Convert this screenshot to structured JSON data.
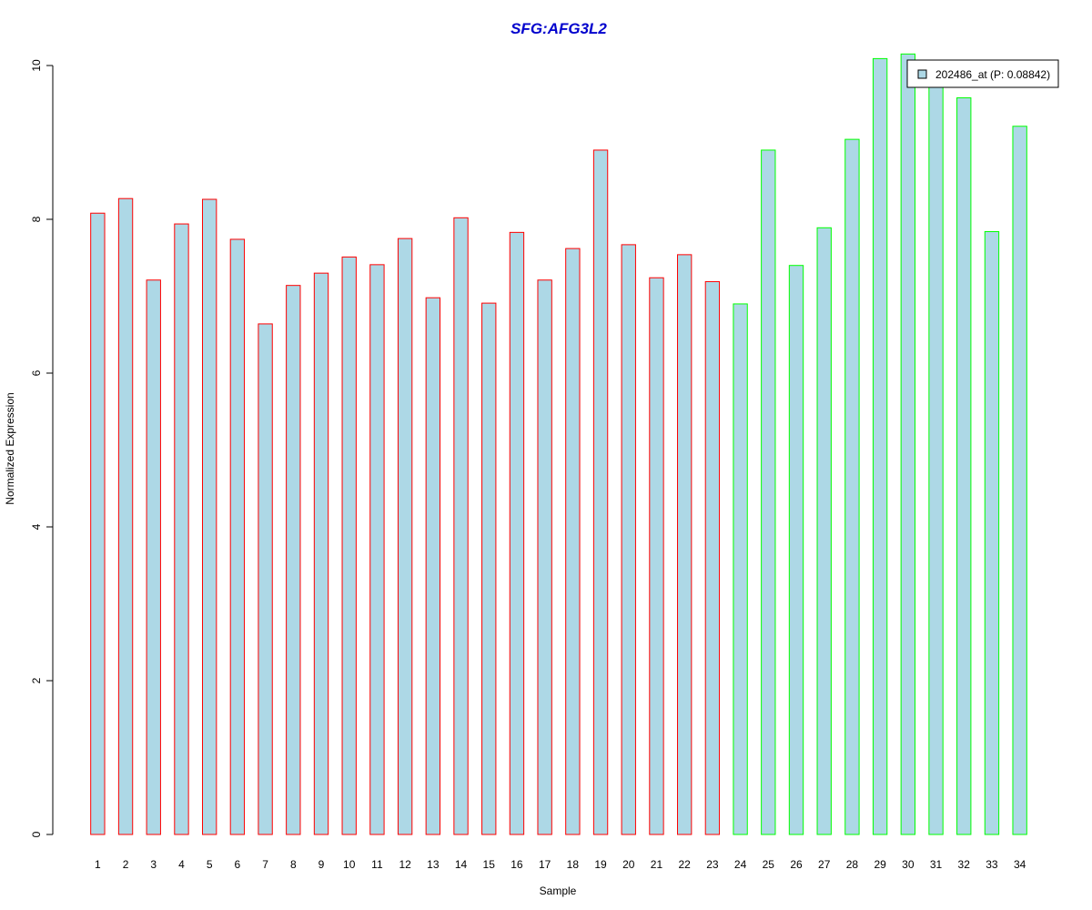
{
  "chart_data": {
    "type": "bar",
    "title": "SFG:AFG3L2",
    "xlabel": "Sample",
    "ylabel": "Normalized Expression",
    "ylim": [
      0,
      10
    ],
    "yticks": [
      0,
      2,
      4,
      6,
      8,
      10
    ],
    "categories": [
      "1",
      "2",
      "3",
      "4",
      "5",
      "6",
      "7",
      "8",
      "9",
      "10",
      "11",
      "12",
      "13",
      "14",
      "15",
      "16",
      "17",
      "18",
      "19",
      "20",
      "21",
      "22",
      "23",
      "24",
      "25",
      "26",
      "27",
      "28",
      "29",
      "30",
      "31",
      "32",
      "33",
      "34"
    ],
    "values": [
      8.08,
      8.27,
      7.21,
      7.94,
      8.26,
      7.74,
      6.64,
      7.14,
      7.3,
      7.51,
      7.41,
      7.75,
      6.98,
      8.02,
      6.91,
      7.83,
      7.21,
      7.62,
      8.9,
      7.67,
      7.24,
      7.54,
      7.19,
      6.9,
      8.9,
      7.4,
      7.89,
      9.04,
      10.09,
      10.15,
      9.79,
      9.58,
      7.84,
      9.21
    ],
    "bar_fill": "#add8e6",
    "border_colors": [
      "#ff0000",
      "#ff0000",
      "#ff0000",
      "#ff0000",
      "#ff0000",
      "#ff0000",
      "#ff0000",
      "#ff0000",
      "#ff0000",
      "#ff0000",
      "#ff0000",
      "#ff0000",
      "#ff0000",
      "#ff0000",
      "#ff0000",
      "#ff0000",
      "#ff0000",
      "#ff0000",
      "#ff0000",
      "#ff0000",
      "#ff0000",
      "#ff0000",
      "#ff0000",
      "#00ff00",
      "#00ff00",
      "#00ff00",
      "#00ff00",
      "#00ff00",
      "#00ff00",
      "#00ff00",
      "#00ff00",
      "#00ff00",
      "#00ff00",
      "#00ff00"
    ],
    "legend": {
      "label": "202486_at (P: 0.08842)",
      "placement": "top-right"
    },
    "title_color": "#0000cd",
    "grid": false
  }
}
